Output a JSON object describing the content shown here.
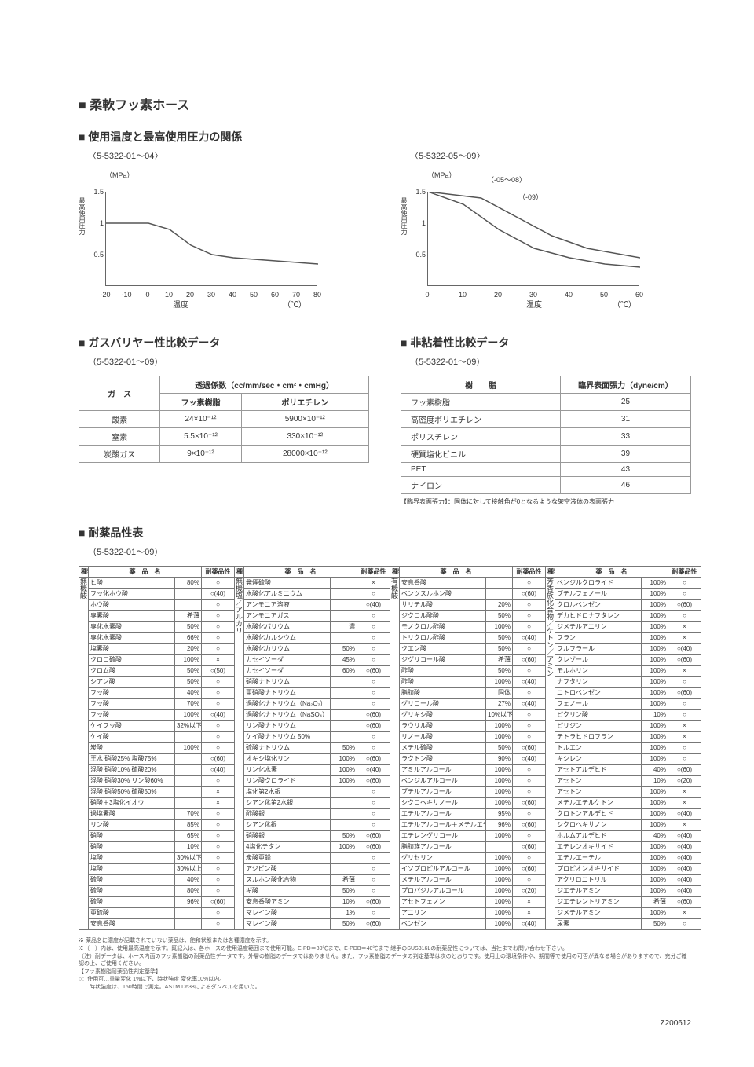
{
  "page_title": "■ 柔軟フッ素ホース",
  "doc_id": "Z200612",
  "temp_pressure": {
    "title": "■ 使用温度と最高使用圧力の関係",
    "left_range": "〈5-5322-01～04〉",
    "right_range": "〈5-5322-05～09〉",
    "y_unit": "（MPa）",
    "y_label": "最高使用圧力",
    "x_label_left": "温度",
    "x_label_unit": "（℃）",
    "chart_left": {
      "grid_color": "#dddddd",
      "line_color": "#555555",
      "xmin": -20,
      "xmax": 80,
      "xtick_step": 10,
      "ymin": 0,
      "ymax": 1.5,
      "ytick_step": 0.5,
      "pts": [
        [
          -20,
          1.0
        ],
        [
          0,
          1.0
        ],
        [
          10,
          0.9
        ],
        [
          20,
          0.65
        ],
        [
          30,
          0.5
        ],
        [
          40,
          0.45
        ],
        [
          60,
          0.4
        ],
        [
          80,
          0.35
        ]
      ]
    },
    "chart_right": {
      "grid_color": "#dddddd",
      "line_color_a": "#555555",
      "line_color_b": "#555555",
      "annot_a": "（-05～08）",
      "annot_b": "（-09）",
      "xmin": 0,
      "xmax": 60,
      "xtick_step": 10,
      "ymin": 0,
      "ymax": 1.5,
      "ytick_step": 0.5,
      "pts_a": [
        [
          0,
          1.5
        ],
        [
          15,
          1.4
        ],
        [
          25,
          1.1
        ],
        [
          35,
          0.8
        ],
        [
          45,
          0.6
        ],
        [
          60,
          0.45
        ]
      ],
      "pts_b": [
        [
          0,
          1.5
        ],
        [
          10,
          1.3
        ],
        [
          20,
          0.9
        ],
        [
          30,
          0.6
        ],
        [
          40,
          0.45
        ],
        [
          50,
          0.35
        ],
        [
          60,
          0.3
        ]
      ]
    }
  },
  "gas": {
    "title": "■ ガスバリヤー性比較データ",
    "range": "（5-5322-01～09）",
    "headers": {
      "gas": "ガ　ス",
      "perm": "透過係数（cc/mm/sec・cm²・cmHg）",
      "f": "フッ素樹脂",
      "pe": "ポリエチレン"
    },
    "rows": [
      {
        "gas": "酸素",
        "f": "24×10⁻¹²",
        "pe": "5900×10⁻¹²"
      },
      {
        "gas": "窒素",
        "f": "5.5×10⁻¹²",
        "pe": "330×10⁻¹²"
      },
      {
        "gas": "炭酸ガス",
        "f": "9×10⁻¹²",
        "pe": "28000×10⁻¹²"
      }
    ]
  },
  "surface": {
    "title": "■ 非粘着性比較データ",
    "range": "（5-5322-01～09）",
    "headers": {
      "resin": "樹　　脂",
      "tension": "臨界表面張力（dyne/cm）"
    },
    "rows": [
      {
        "resin": "フッ素樹脂",
        "tension": "25"
      },
      {
        "resin": "高密度ポリエチレン",
        "tension": "31"
      },
      {
        "resin": "ポリスチレン",
        "tension": "33"
      },
      {
        "resin": "硬質塩化ビニル",
        "tension": "39"
      },
      {
        "resin": "PET",
        "tension": "43"
      },
      {
        "resin": "ナイロン",
        "tension": "46"
      }
    ],
    "note": "【臨界表面張力】：固体に対して接触角が0となるような架空液体の表面張力"
  },
  "chem": {
    "title": "■ 耐薬品性表",
    "range": "（5-5322-01～09）",
    "headers": {
      "type": "種類",
      "name": "薬　品　名",
      "res": "耐薬品性"
    },
    "groups": [
      {
        "label": "無機酸",
        "rows": [
          {
            "n": "ヒ酸",
            "c": "80%",
            "r": "○"
          },
          {
            "n": "フッ化ホウ酸",
            "c": "",
            "r": "○(40)"
          },
          {
            "n": "ホウ酸",
            "c": "",
            "r": "○"
          },
          {
            "n": "臭素酸",
            "c": "希薄",
            "r": "○"
          },
          {
            "n": "臭化水素酸",
            "c": "50%",
            "r": "○"
          },
          {
            "n": "臭化水素酸",
            "c": "66%",
            "r": "○"
          },
          {
            "n": "塩素酸",
            "c": "20%",
            "r": "○"
          },
          {
            "n": "クロロ硫酸",
            "c": "100%",
            "r": "×"
          },
          {
            "n": "クロム酸",
            "c": "50%",
            "r": "○(50)"
          },
          {
            "n": "シアン酸",
            "c": "50%",
            "r": "○"
          },
          {
            "n": "フッ酸",
            "c": "40%",
            "r": "○"
          },
          {
            "n": "フッ酸",
            "c": "70%",
            "r": "○"
          },
          {
            "n": "フッ酸",
            "c": "100%",
            "r": "○(40)"
          },
          {
            "n": "ケイフッ酸",
            "c": "32%以下",
            "r": "○"
          },
          {
            "n": "ケイ酸",
            "c": "",
            "r": "○"
          },
          {
            "n": "炭酸",
            "c": "100%",
            "r": "○"
          },
          {
            "n": "王水 硝酸25% 塩酸75%",
            "c": "",
            "r": "○(60)"
          },
          {
            "n": "混酸 硝酸10% 硫酸20%",
            "c": "",
            "r": "○(40)"
          },
          {
            "n": "混酸 硝酸30% リン酸60%",
            "c": "",
            "r": "○"
          },
          {
            "n": "混酸 硝酸50% 硫酸50%",
            "c": "",
            "r": "×"
          },
          {
            "n": "硝酸＋3塩化イオウ",
            "c": "",
            "r": "×"
          },
          {
            "n": "過塩素酸",
            "c": "70%",
            "r": "○"
          },
          {
            "n": "リン酸",
            "c": "85%",
            "r": "○"
          },
          {
            "n": "硝酸",
            "c": "65%",
            "r": "○"
          },
          {
            "n": "硝酸",
            "c": "10%",
            "r": "○"
          },
          {
            "n": "塩酸",
            "c": "30%以下",
            "r": "○"
          },
          {
            "n": "塩酸",
            "c": "30%以上",
            "r": "○"
          },
          {
            "n": "硫酸",
            "c": "40%",
            "r": "○"
          },
          {
            "n": "硫酸",
            "c": "80%",
            "r": "○"
          },
          {
            "n": "硫酸",
            "c": "96%",
            "r": "○(60)"
          },
          {
            "n": "亜硫酸",
            "c": "",
            "r": "○"
          },
          {
            "n": "安息香酸",
            "c": "",
            "r": "○"
          }
        ]
      },
      {
        "label": "無機塩／アルカリ",
        "sublabels": [
          "発煙",
          "アルカリ"
        ],
        "rows": [
          {
            "n": "発煙硫酸",
            "c": "",
            "r": "×"
          },
          {
            "n": "水酸化アルミニウム",
            "c": "",
            "r": "○"
          },
          {
            "n": "アンモニア溶液",
            "c": "",
            "r": "○(40)"
          },
          {
            "n": "アンモニアガス",
            "c": "",
            "r": "○"
          },
          {
            "n": "水酸化バリウム",
            "c": "濃",
            "r": "○"
          },
          {
            "n": "水酸化カルシウム",
            "c": "",
            "r": "○"
          },
          {
            "n": "水酸化カリウム",
            "c": "50%",
            "r": "○"
          },
          {
            "n": "カセイソーダ",
            "c": "45%",
            "r": "○"
          },
          {
            "n": "カセイソーダ",
            "c": "60%",
            "r": "○(60)"
          },
          {
            "n": "硝酸ナトリウム",
            "c": "",
            "r": "○"
          },
          {
            "n": "亜硝酸ナトリウム",
            "c": "",
            "r": "○"
          },
          {
            "n": "過酸化ナトリウム（Na₂O₂）",
            "c": "",
            "r": "○"
          },
          {
            "n": "過酸化ナトリウム（NaSO₄）",
            "c": "",
            "r": "○(60)"
          },
          {
            "n": "リン酸ナトリウム",
            "c": "",
            "r": "○(60)"
          },
          {
            "n": "ケイ酸ナトリウム 50%",
            "c": "",
            "r": "○"
          },
          {
            "n": "硫酸ナトリウム",
            "c": "50%",
            "r": "○"
          },
          {
            "n": "オキシ塩化リン",
            "c": "100%",
            "r": "○(60)"
          },
          {
            "n": "リン化水素",
            "c": "100%",
            "r": "○(40)"
          },
          {
            "n": "リン酸クロライド",
            "c": "100%",
            "r": "○(60)"
          },
          {
            "n": "塩化第2水銀",
            "c": "",
            "r": "○"
          },
          {
            "n": "シアン化第2水銀",
            "c": "",
            "r": "○"
          },
          {
            "n": "酢酸銀",
            "c": "",
            "r": "○"
          },
          {
            "n": "シアン化銀",
            "c": "",
            "r": "○"
          },
          {
            "n": "硝酸銀",
            "c": "50%",
            "r": "○(60)"
          },
          {
            "n": "4塩化チタン",
            "c": "100%",
            "r": "○(60)"
          },
          {
            "n": "炭酸亜鉛",
            "c": "",
            "r": "○"
          },
          {
            "n": "アジピン酸",
            "c": "",
            "r": "○"
          },
          {
            "n": "スルホン酸化合物",
            "c": "希薄",
            "r": "○"
          },
          {
            "n": "ギ酸",
            "c": "50%",
            "r": "○"
          },
          {
            "n": "安息香酸アミン",
            "c": "10%",
            "r": "○(60)"
          },
          {
            "n": "マレイン酸",
            "c": "1%",
            "r": "○"
          },
          {
            "n": "マレイン酸",
            "c": "50%",
            "r": "○(60)"
          }
        ]
      },
      {
        "label": "有機酸",
        "rows": [
          {
            "n": "安息香酸",
            "c": "",
            "r": "○"
          },
          {
            "n": "ベンツスルホン酸",
            "c": "",
            "r": "○(60)"
          },
          {
            "n": "サリチル酸",
            "c": "20%",
            "r": "○"
          },
          {
            "n": "ジクロル酢酸",
            "c": "50%",
            "r": "○"
          },
          {
            "n": "モノクロル酢酸",
            "c": "100%",
            "r": "○"
          },
          {
            "n": "トリクロル酢酸",
            "c": "50%",
            "r": "○(40)"
          },
          {
            "n": "クエン酸",
            "c": "50%",
            "r": "○"
          },
          {
            "n": "ジグリコール酸",
            "c": "希薄",
            "r": "○(60)"
          },
          {
            "n": "酢酸",
            "c": "50%",
            "r": "○"
          },
          {
            "n": "酢酸",
            "c": "100%",
            "r": "○(40)"
          },
          {
            "n": "脂肪酸",
            "c": "固体",
            "r": "○"
          },
          {
            "n": "グリコール酸",
            "c": "27%",
            "r": "○(40)"
          },
          {
            "n": "グリキシ酸",
            "c": "10%以下",
            "r": "○"
          },
          {
            "n": "ラウリル酸",
            "c": "100%",
            "r": "○"
          },
          {
            "n": "リノール酸",
            "c": "100%",
            "r": "○"
          },
          {
            "n": "メチル硫酸",
            "c": "50%",
            "r": "○(60)"
          },
          {
            "n": "ラクトン酸",
            "c": "90%",
            "r": "○(40)"
          },
          {
            "n": "アミルアルコール",
            "c": "100%",
            "r": "○"
          },
          {
            "n": "ベンジルアルコール",
            "c": "100%",
            "r": "○"
          },
          {
            "n": "ブチルアルコール",
            "c": "100%",
            "r": "○"
          },
          {
            "n": "シクロヘキサノール",
            "c": "100%",
            "r": "○(60)"
          },
          {
            "n": "エチルアルコール",
            "c": "95%",
            "r": "○"
          },
          {
            "n": "エチルアルコール＋メチルエチル",
            "c": "96%",
            "r": "○(60)"
          },
          {
            "n": "エチレングリコール",
            "c": "100%",
            "r": "○"
          },
          {
            "n": "脂肪族アルコール",
            "c": "",
            "r": "○(60)"
          },
          {
            "n": "グリセリン",
            "c": "100%",
            "r": "○"
          },
          {
            "n": "イソプロピルアルコール",
            "c": "100%",
            "r": "○(60)"
          },
          {
            "n": "メチルアルコール",
            "c": "100%",
            "r": "○"
          },
          {
            "n": "プロパジルアルコール",
            "c": "100%",
            "r": "○(20)"
          },
          {
            "n": "アセトフェノン",
            "c": "100%",
            "r": "×"
          },
          {
            "n": "アニリン",
            "c": "100%",
            "r": "×"
          },
          {
            "n": "ベンゼン",
            "c": "100%",
            "r": "○(40)"
          }
        ]
      },
      {
        "label": "芳香族化合物／ケトン／アミン",
        "rows": [
          {
            "n": "ベンジルクロライド",
            "c": "100%",
            "r": "○"
          },
          {
            "n": "ブチルフェノール",
            "c": "100%",
            "r": "○"
          },
          {
            "n": "クロルベンゼン",
            "c": "100%",
            "r": "○(60)"
          },
          {
            "n": "デカヒドロナフタレン",
            "c": "100%",
            "r": "○"
          },
          {
            "n": "ジメチルアニリン",
            "c": "100%",
            "r": "×"
          },
          {
            "n": "フラン",
            "c": "100%",
            "r": "×"
          },
          {
            "n": "フルフラール",
            "c": "100%",
            "r": "○(40)"
          },
          {
            "n": "クレゾール",
            "c": "100%",
            "r": "○(60)"
          },
          {
            "n": "モルホリン",
            "c": "100%",
            "r": "×"
          },
          {
            "n": "ナフタリン",
            "c": "100%",
            "r": "○"
          },
          {
            "n": "ニトロベンゼン",
            "c": "100%",
            "r": "○(60)"
          },
          {
            "n": "フェノール",
            "c": "100%",
            "r": "○"
          },
          {
            "n": "ピクリン酸",
            "c": "10%",
            "r": "○"
          },
          {
            "n": "ピリジン",
            "c": "100%",
            "r": "×"
          },
          {
            "n": "テトラヒドロフラン",
            "c": "100%",
            "r": "×"
          },
          {
            "n": "トルエン",
            "c": "100%",
            "r": "○"
          },
          {
            "n": "キシレン",
            "c": "100%",
            "r": "○"
          },
          {
            "n": "アセトアルデヒド",
            "c": "40%",
            "r": "○(60)"
          },
          {
            "n": "アセトン",
            "c": "10%",
            "r": "○(20)"
          },
          {
            "n": "アセトン",
            "c": "100%",
            "r": "×"
          },
          {
            "n": "メチルエチルケトン",
            "c": "100%",
            "r": "×"
          },
          {
            "n": "クロトンアルデヒド",
            "c": "100%",
            "r": "○(40)"
          },
          {
            "n": "シクロヘキサノン",
            "c": "100%",
            "r": "×"
          },
          {
            "n": "ホルムアルデヒド",
            "c": "40%",
            "r": "○(40)"
          },
          {
            "n": "エチレンオキサイド",
            "c": "100%",
            "r": "○(40)"
          },
          {
            "n": "エチルエーテル",
            "c": "100%",
            "r": "○(40)"
          },
          {
            "n": "プロピオンオキサイド",
            "c": "100%",
            "r": "○(40)"
          },
          {
            "n": "アクリロニトリル",
            "c": "100%",
            "r": "○(40)"
          },
          {
            "n": "ジエチルアミン",
            "c": "100%",
            "r": "○(40)"
          },
          {
            "n": "ジエチレントリアミン",
            "c": "希薄",
            "r": "○(60)"
          },
          {
            "n": "ジメチルアミン",
            "c": "100%",
            "r": "×"
          },
          {
            "n": "尿素",
            "c": "50%",
            "r": "○"
          }
        ]
      }
    ],
    "footnotes": [
      "※ 薬品名に濃度が記載されていない薬品は、飽和状態または各種濃度を示す。",
      "※（　）内は、使用最高温度を示す。既記入は、各ホースの使用温度範囲まで使用可能。E-PD＝80℃まで、E-PDB＝40℃まで 継手のSUS316Lの耐薬品性については、当社までお問い合わせ下さい。",
      "（注）耐データは、ホース内面のフッ素樹脂の耐薬品性データです。外層の樹脂のデータではありません。また、フッ素樹脂のデータの判定基準は次のとおりです。使用上の環境条件や、期間等で使用の可否が異なる場合がありますので、充分ご確認の上、ご使用ください。",
      "【フッ素樹脂耐薬品性判定基準】",
      "○：使用可…重量変化 1%以下、時状強度 変化率10%以内。",
      "　　時状強度は、150時間で測定。ASTM D638によるダンベルを用いた。"
    ]
  }
}
